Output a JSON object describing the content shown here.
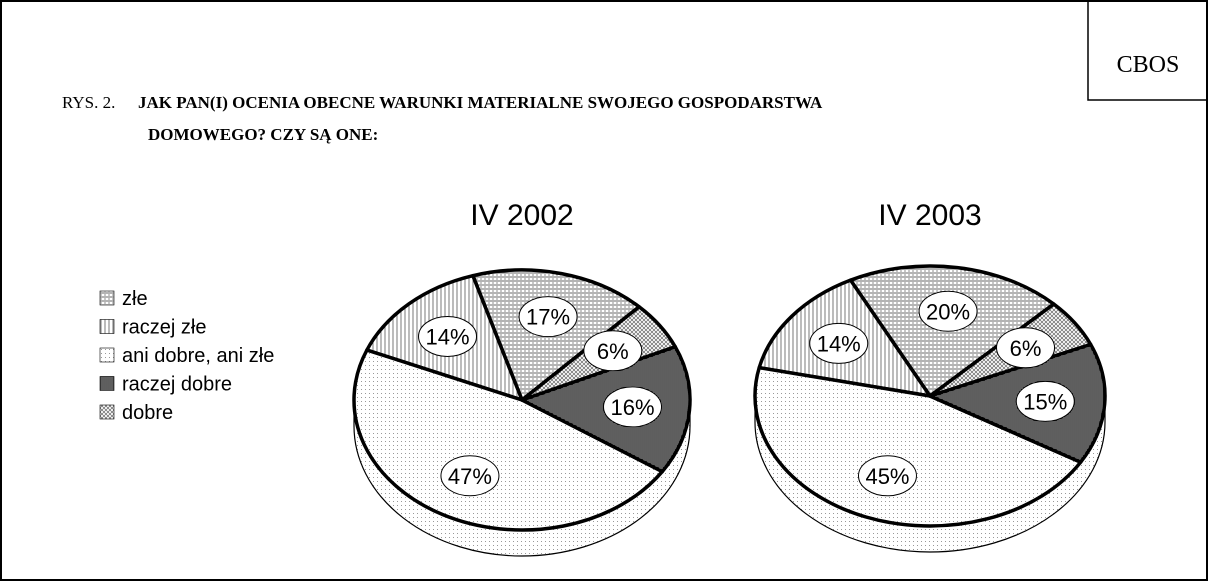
{
  "badge": "CBOS",
  "figure_label": "RYS. 2.",
  "title_lines": [
    "JAK PAN(I) OCENIA OBECNE WARUNKI MATERIALNE SWOJEGO GOSPODARSTWA",
    "DOMOWEGO? CZY SĄ ONE:"
  ],
  "chart_data": [
    {
      "type": "pie",
      "title": "IV 2002",
      "categories": [
        "złe",
        "raczej złe",
        "ani dobre, ani złe",
        "raczej dobre",
        "dobre"
      ],
      "colors": [
        "#444444",
        "#555555",
        "#999999",
        "#222222",
        "#666666"
      ],
      "values": [
        17,
        14,
        47,
        16,
        6
      ],
      "value_labels": [
        "17%",
        "14%",
        "47%",
        "16%",
        "6%"
      ]
    },
    {
      "type": "pie",
      "title": "IV 2003",
      "values": [
        20,
        14,
        45,
        15,
        6
      ],
      "value_labels": [
        "20%",
        "14%",
        "45%",
        "15%",
        "6%"
      ]
    }
  ]
}
